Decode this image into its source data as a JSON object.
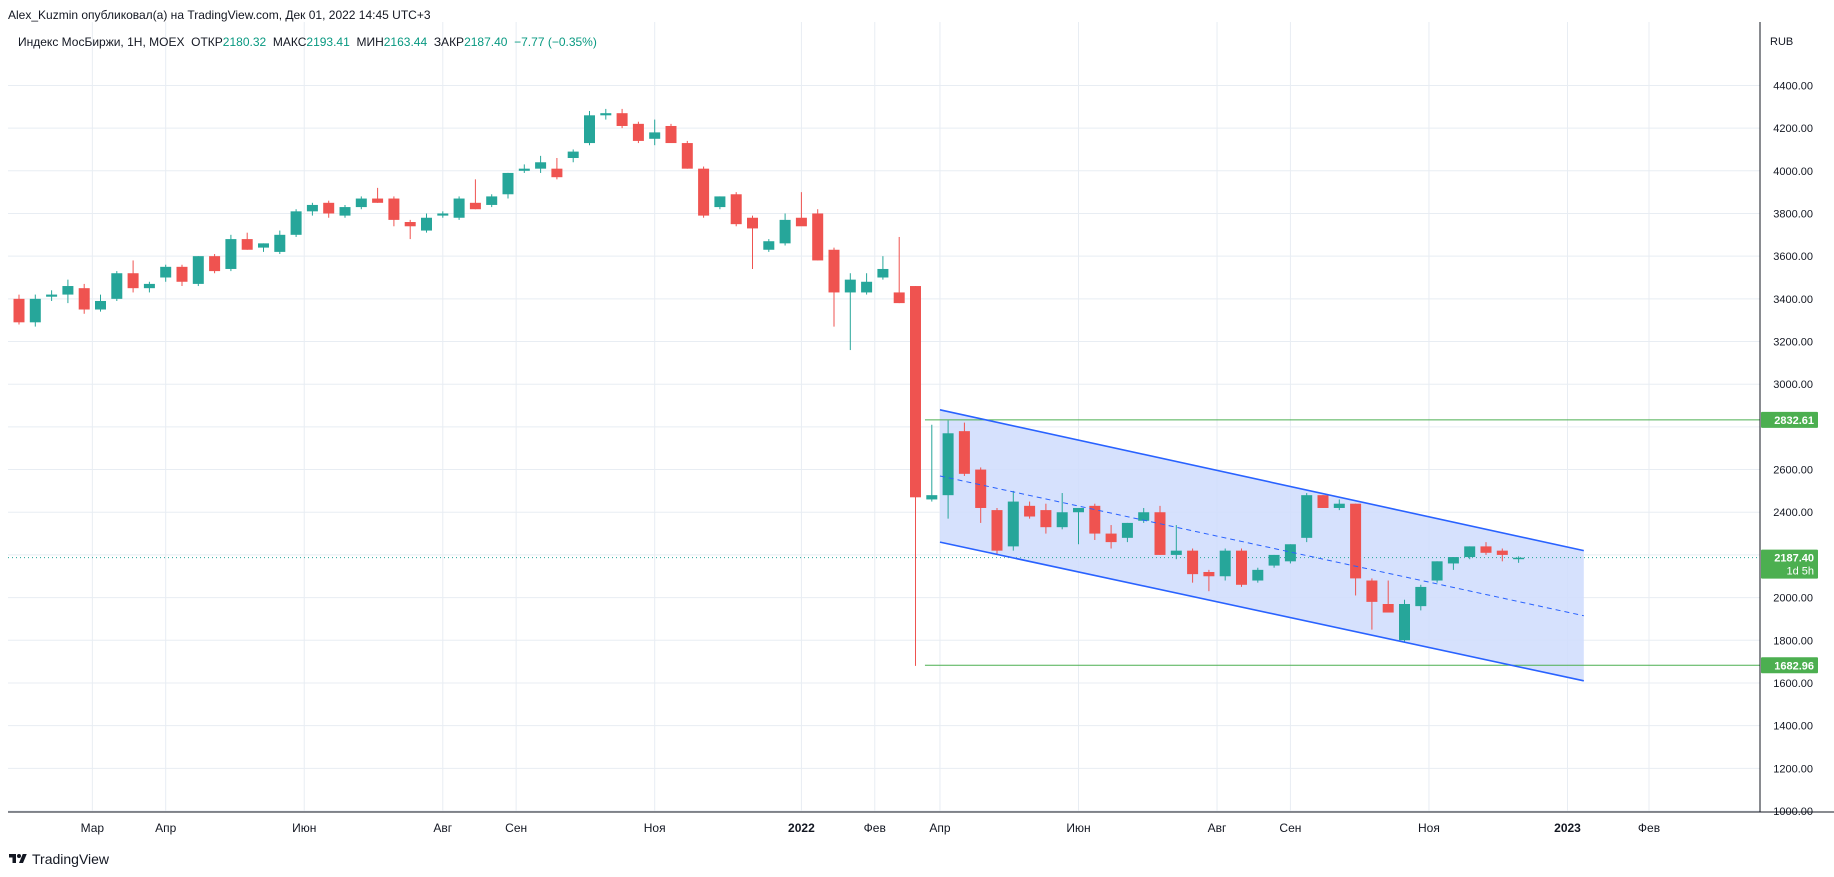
{
  "header": {
    "publisher": "Alex_Kuzmin опубликовал(а) на TradingView.com, Дек 01, 2022 14:45 UTC+3"
  },
  "legend": {
    "symbol": "Индекс МосБиржи, 1Н, MOEX",
    "open_label": "ОТКР",
    "open": "2180.32",
    "high_label": "МАКС",
    "high": "2193.41",
    "low_label": "МИН",
    "low": "2163.44",
    "close_label": "ЗАКР",
    "close": "2187.40",
    "change": "−7.77 (−0.35%)"
  },
  "footer": {
    "brand": "TradingView"
  },
  "colors": {
    "up": "#26a69a",
    "down": "#ef5350",
    "channel": "#2962ff",
    "channel_fill": "#cfdcfd",
    "level": "#4caf50",
    "grid": "#e8edf3"
  },
  "chart_data": {
    "type": "candlestick",
    "currency": "RUB",
    "y_ticks": [
      1000,
      1200,
      1400,
      1600,
      1800,
      2000,
      2200,
      2400,
      2600,
      2800,
      3000,
      3200,
      3400,
      3600,
      3800,
      4000,
      4200,
      4400
    ],
    "x_ticks": [
      {
        "label": "Мар",
        "week": 4.5
      },
      {
        "label": "Апр",
        "week": 9
      },
      {
        "label": "Июн",
        "week": 17.5
      },
      {
        "label": "Авг",
        "week": 26
      },
      {
        "label": "Сен",
        "week": 30.5
      },
      {
        "label": "Ноя",
        "week": 39
      },
      {
        "label": "2022",
        "week": 48
      },
      {
        "label": "Фев",
        "week": 52.5
      },
      {
        "label": "Апр",
        "week": 56.5
      },
      {
        "label": "Июн",
        "week": 65
      },
      {
        "label": "Авг",
        "week": 73.5
      },
      {
        "label": "Сен",
        "week": 78
      },
      {
        "label": "Ноя",
        "week": 86.5
      },
      {
        "label": "2023",
        "week": 95
      },
      {
        "label": "Фев",
        "week": 100
      }
    ],
    "candles": [
      [
        3400,
        3420,
        3280,
        3290
      ],
      [
        3290,
        3420,
        3270,
        3400
      ],
      [
        3410,
        3440,
        3390,
        3420
      ],
      [
        3420,
        3490,
        3380,
        3460
      ],
      [
        3450,
        3470,
        3330,
        3350
      ],
      [
        3350,
        3420,
        3340,
        3390
      ],
      [
        3400,
        3530,
        3390,
        3520
      ],
      [
        3520,
        3580,
        3430,
        3450
      ],
      [
        3450,
        3480,
        3430,
        3470
      ],
      [
        3500,
        3560,
        3480,
        3550
      ],
      [
        3550,
        3560,
        3460,
        3480
      ],
      [
        3470,
        3600,
        3460,
        3600
      ],
      [
        3600,
        3610,
        3520,
        3530
      ],
      [
        3540,
        3700,
        3530,
        3680
      ],
      [
        3680,
        3710,
        3630,
        3630
      ],
      [
        3640,
        3660,
        3620,
        3660
      ],
      [
        3620,
        3720,
        3610,
        3700
      ],
      [
        3700,
        3820,
        3690,
        3810
      ],
      [
        3810,
        3850,
        3790,
        3840
      ],
      [
        3850,
        3860,
        3780,
        3800
      ],
      [
        3790,
        3840,
        3780,
        3830
      ],
      [
        3830,
        3880,
        3820,
        3870
      ],
      [
        3870,
        3920,
        3850,
        3850
      ],
      [
        3870,
        3880,
        3740,
        3770
      ],
      [
        3760,
        3770,
        3680,
        3740
      ],
      [
        3720,
        3800,
        3710,
        3780
      ],
      [
        3790,
        3810,
        3780,
        3800
      ],
      [
        3780,
        3880,
        3770,
        3870
      ],
      [
        3850,
        3960,
        3820,
        3820
      ],
      [
        3840,
        3890,
        3830,
        3880
      ],
      [
        3890,
        3990,
        3870,
        3990
      ],
      [
        4000,
        4030,
        3990,
        4010
      ],
      [
        4010,
        4070,
        3990,
        4040
      ],
      [
        4010,
        4060,
        3960,
        3970
      ],
      [
        4060,
        4100,
        4040,
        4090
      ],
      [
        4130,
        4280,
        4120,
        4260
      ],
      [
        4260,
        4290,
        4240,
        4270
      ],
      [
        4270,
        4290,
        4200,
        4210
      ],
      [
        4220,
        4230,
        4130,
        4140
      ],
      [
        4150,
        4240,
        4120,
        4180
      ],
      [
        4210,
        4220,
        4130,
        4130
      ],
      [
        4130,
        4140,
        4010,
        4010
      ],
      [
        4010,
        4020,
        3780,
        3790
      ],
      [
        3830,
        3880,
        3820,
        3880
      ],
      [
        3890,
        3900,
        3740,
        3750
      ],
      [
        3780,
        3790,
        3540,
        3730
      ],
      [
        3630,
        3680,
        3620,
        3670
      ],
      [
        3660,
        3800,
        3650,
        3770
      ],
      [
        3780,
        3900,
        3760,
        3740
      ],
      [
        3800,
        3820,
        3580,
        3580
      ],
      [
        3630,
        3640,
        3270,
        3430
      ],
      [
        3430,
        3520,
        3160,
        3490
      ],
      [
        3430,
        3520,
        3420,
        3480
      ],
      [
        3500,
        3600,
        3490,
        3540
      ],
      [
        3430,
        3690,
        3380,
        3380
      ],
      [
        3460,
        3460,
        1680,
        2470
      ],
      [
        2460,
        2810,
        2450,
        2480
      ],
      [
        2480,
        2830,
        2370,
        2770
      ],
      [
        2780,
        2820,
        2570,
        2580
      ],
      [
        2600,
        2610,
        2350,
        2420
      ],
      [
        2410,
        2420,
        2200,
        2220
      ],
      [
        2240,
        2500,
        2220,
        2450
      ],
      [
        2430,
        2450,
        2370,
        2380
      ],
      [
        2410,
        2440,
        2300,
        2330
      ],
      [
        2330,
        2490,
        2320,
        2400
      ],
      [
        2400,
        2410,
        2250,
        2420
      ],
      [
        2430,
        2440,
        2270,
        2300
      ],
      [
        2300,
        2340,
        2230,
        2260
      ],
      [
        2280,
        2350,
        2260,
        2350
      ],
      [
        2360,
        2420,
        2350,
        2400
      ],
      [
        2400,
        2430,
        2200,
        2200
      ],
      [
        2200,
        2340,
        2180,
        2220
      ],
      [
        2220,
        2230,
        2070,
        2110
      ],
      [
        2120,
        2130,
        2030,
        2100
      ],
      [
        2100,
        2230,
        2080,
        2220
      ],
      [
        2220,
        2230,
        2050,
        2060
      ],
      [
        2080,
        2140,
        2070,
        2130
      ],
      [
        2150,
        2200,
        2140,
        2200
      ],
      [
        2170,
        2250,
        2160,
        2250
      ],
      [
        2280,
        2490,
        2260,
        2480
      ],
      [
        2480,
        2480,
        2420,
        2420
      ],
      [
        2420,
        2460,
        2410,
        2440
      ],
      [
        2440,
        2440,
        2010,
        2090
      ],
      [
        2080,
        2090,
        1850,
        1980
      ],
      [
        1970,
        2080,
        1940,
        1930
      ],
      [
        1800,
        1990,
        1790,
        1970
      ],
      [
        1960,
        2060,
        1940,
        2050
      ],
      [
        2080,
        2170,
        2070,
        2170
      ],
      [
        2160,
        2190,
        2130,
        2190
      ],
      [
        2190,
        2240,
        2180,
        2240
      ],
      [
        2240,
        2260,
        2200,
        2210
      ],
      [
        2220,
        2230,
        2170,
        2200
      ],
      [
        2180,
        2193,
        2163,
        2187
      ]
    ],
    "channel_upper": [
      [
        56.5,
        2880
      ],
      [
        96,
        2220
      ]
    ],
    "channel_lower": [
      [
        56.5,
        2260
      ],
      [
        96,
        1610
      ]
    ],
    "channel_mid": [
      [
        56.5,
        2570
      ],
      [
        96,
        1915
      ]
    ],
    "level_high": 2832.61,
    "level_low": 1682.96,
    "last_price": 2187.4,
    "level_high_label": "2832.61",
    "level_low_label": "1682.96",
    "last_price_label": "2187.40",
    "countdown": "1d 5h",
    "grid": true
  }
}
